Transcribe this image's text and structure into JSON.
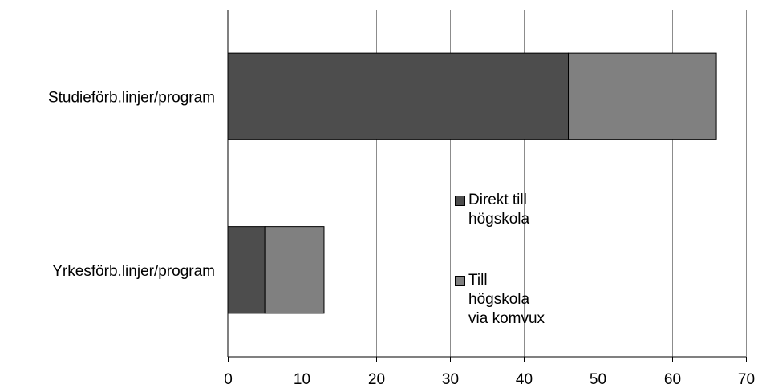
{
  "chart_data": {
    "type": "bar",
    "orientation": "horizontal",
    "stacked": true,
    "categories": [
      "Studieförb.linjer/program",
      "Yrkesförb.linjer/program"
    ],
    "series": [
      {
        "name": "Direkt till högskola",
        "values": [
          46,
          5
        ],
        "color": "#4d4d4d"
      },
      {
        "name": "Till högskola via komvux",
        "values": [
          20,
          8
        ],
        "color": "#808080"
      }
    ],
    "xlim": [
      0,
      70
    ],
    "xticks": [
      0,
      10,
      20,
      30,
      40,
      50,
      60,
      70
    ],
    "grid": true,
    "legend_position": "center",
    "title": "",
    "xlabel": "",
    "ylabel": ""
  },
  "legend": {
    "entries": [
      {
        "lines": [
          "Direkt till",
          "högskola"
        ]
      },
      {
        "lines": [
          "Till",
          "högskola",
          "via komvux"
        ]
      }
    ]
  }
}
